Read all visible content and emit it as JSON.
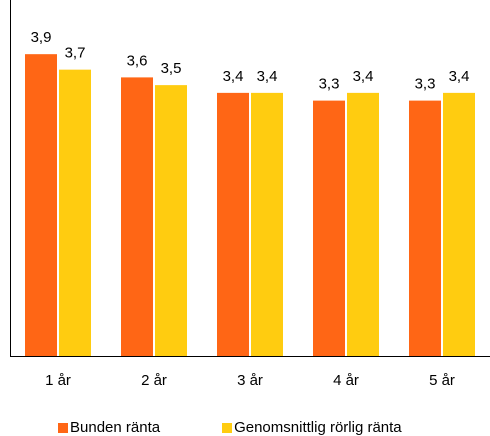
{
  "chart_data": {
    "type": "bar",
    "categories": [
      "1 år",
      "2 år",
      "3 år",
      "4 år",
      "5 år"
    ],
    "series": [
      {
        "name": "Bunden ränta",
        "values": [
          3.9,
          3.6,
          3.4,
          3.3,
          3.3
        ],
        "labels": [
          "3,9",
          "3,6",
          "3,4",
          "3,3",
          "3,3"
        ],
        "color": "#FF6615"
      },
      {
        "name": "Genomsnittlig rörlig ränta",
        "values": [
          3.7,
          3.5,
          3.4,
          3.4,
          3.4
        ],
        "labels": [
          "3,7",
          "3,5",
          "3,4",
          "3,4",
          "3,4"
        ],
        "color": "#FFCC10"
      }
    ],
    "ylim": [
      0,
      4.6
    ],
    "grid": false,
    "legend_position": "bottom",
    "axes": {
      "left": true,
      "bottom": true
    }
  }
}
